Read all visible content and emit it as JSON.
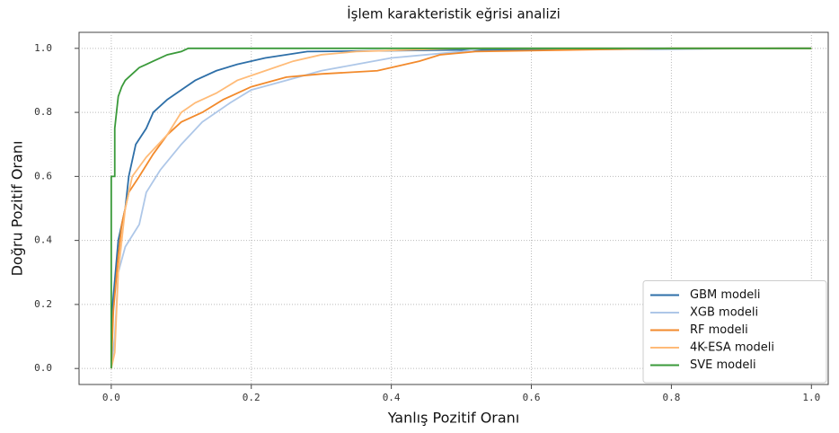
{
  "chart_data": {
    "type": "line",
    "title": "İşlem karakteristik eğrisi analizi",
    "xlabel": "Yanlış Pozitif Oranı",
    "ylabel": "Doğru Pozitif Oranı",
    "xlim": [
      -0.046,
      1.024
    ],
    "ylim": [
      -0.05,
      1.05
    ],
    "xticks": [
      {
        "value": 0,
        "label": "0.0"
      },
      {
        "value": 0.2,
        "label": "0.2"
      },
      {
        "value": 0.4,
        "label": "0.4"
      },
      {
        "value": 0.6,
        "label": "0.6"
      },
      {
        "value": 0.8,
        "label": "0.8"
      },
      {
        "value": 1,
        "label": "1.0"
      }
    ],
    "yticks": [
      {
        "value": 0,
        "label": "0.0"
      },
      {
        "value": 0.2,
        "label": "0.2"
      },
      {
        "value": 0.4,
        "label": "0.4"
      },
      {
        "value": 0.6,
        "label": "0.6"
      },
      {
        "value": 0.8,
        "label": "0.8"
      },
      {
        "value": 1,
        "label": "1.0"
      }
    ],
    "grid": true,
    "legend": "lower right",
    "series": [
      {
        "name": "GBM modeli",
        "color": "#2e6fa8",
        "x": [
          0,
          0.002,
          0.01,
          0.02,
          0.025,
          0.035,
          0.05,
          0.06,
          0.08,
          0.1,
          0.12,
          0.15,
          0.18,
          0.22,
          0.28,
          0.5,
          0.96,
          1
        ],
        "values": [
          0,
          0.2,
          0.4,
          0.5,
          0.6,
          0.7,
          0.75,
          0.8,
          0.84,
          0.87,
          0.9,
          0.93,
          0.95,
          0.97,
          0.99,
          0.995,
          1,
          1
        ]
      },
      {
        "name": "XGB modeli",
        "color": "#aec7e8",
        "x": [
          0,
          0.005,
          0.01,
          0.02,
          0.04,
          0.05,
          0.07,
          0.1,
          0.13,
          0.17,
          0.2,
          0.25,
          0.3,
          0.35,
          0.4,
          0.45,
          0.5,
          0.53,
          1
        ],
        "values": [
          0,
          0.1,
          0.3,
          0.38,
          0.45,
          0.55,
          0.62,
          0.7,
          0.77,
          0.83,
          0.87,
          0.9,
          0.93,
          0.95,
          0.97,
          0.98,
          0.99,
          1,
          1
        ]
      },
      {
        "name": "RF modeli",
        "color": "#f28a2c",
        "x": [
          0,
          0.003,
          0.01,
          0.015,
          0.025,
          0.04,
          0.06,
          0.08,
          0.1,
          0.13,
          0.16,
          0.2,
          0.25,
          0.3,
          0.38,
          0.44,
          0.47,
          0.52,
          0.8,
          1
        ],
        "values": [
          0,
          0.18,
          0.35,
          0.45,
          0.55,
          0.6,
          0.67,
          0.73,
          0.77,
          0.8,
          0.84,
          0.88,
          0.91,
          0.92,
          0.93,
          0.96,
          0.98,
          0.99,
          1,
          1
        ]
      },
      {
        "name": "4K-ESA modeli",
        "color": "#ffbb78",
        "x": [
          0,
          0.005,
          0.01,
          0.02,
          0.03,
          0.05,
          0.08,
          0.1,
          0.12,
          0.15,
          0.18,
          0.22,
          0.26,
          0.3,
          0.35,
          0.5,
          1
        ],
        "values": [
          0,
          0.05,
          0.3,
          0.5,
          0.6,
          0.66,
          0.73,
          0.8,
          0.83,
          0.86,
          0.9,
          0.93,
          0.96,
          0.98,
          0.99,
          1,
          1
        ]
      },
      {
        "name": "SVE modeli",
        "color": "#3a9a3a",
        "x": [
          0,
          0,
          0.005,
          0.005,
          0.01,
          0.015,
          0.02,
          0.03,
          0.04,
          0.05,
          0.06,
          0.08,
          0.1,
          0.11,
          1
        ],
        "values": [
          0,
          0.6,
          0.6,
          0.75,
          0.85,
          0.88,
          0.9,
          0.92,
          0.94,
          0.95,
          0.96,
          0.98,
          0.99,
          1,
          1
        ]
      }
    ]
  }
}
